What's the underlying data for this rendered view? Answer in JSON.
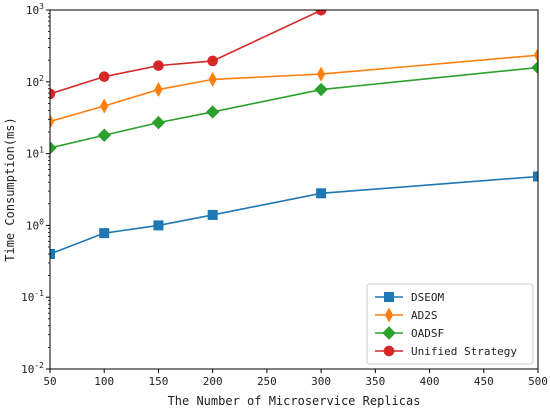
{
  "chart_data": {
    "type": "line",
    "title": "",
    "xlabel": "The Number of Microservice Replicas",
    "ylabel": "Time Consumption(ms)",
    "xlim": [
      50,
      500
    ],
    "ylim": [
      0.01,
      1000
    ],
    "yscale": "log",
    "x_ticks": [
      50,
      100,
      150,
      200,
      250,
      300,
      350,
      400,
      450,
      500
    ],
    "x_tick_labels": [
      "50",
      "100",
      "150",
      "200",
      "250",
      "300",
      "350",
      "400",
      "450",
      "500"
    ],
    "y_ticks": [
      0.01,
      0.1,
      1,
      10,
      100,
      1000
    ],
    "y_tick_labels": [
      {
        "base": "10",
        "exp": "-2"
      },
      {
        "base": "10",
        "exp": "-1"
      },
      {
        "base": "10",
        "exp": "0"
      },
      {
        "base": "10",
        "exp": "1"
      },
      {
        "base": "10",
        "exp": "2"
      },
      {
        "base": "10",
        "exp": "3"
      }
    ],
    "grid": false,
    "legend_position": "lower-right",
    "series": [
      {
        "name": "DSEOM",
        "color": "#1f77b4",
        "marker": "square",
        "x": [
          50,
          100,
          150,
          200,
          300,
          500
        ],
        "y": [
          0.4,
          0.78,
          1.0,
          1.4,
          2.8,
          4.8
        ]
      },
      {
        "name": "AD2S",
        "color": "#ff7f0e",
        "marker": "thin-diamond",
        "x": [
          50,
          100,
          150,
          200,
          300,
          500
        ],
        "y": [
          28,
          46,
          78,
          108,
          128,
          235
        ]
      },
      {
        "name": "OADSF",
        "color": "#2ca02c",
        "marker": "diamond",
        "x": [
          50,
          100,
          150,
          200,
          300,
          500
        ],
        "y": [
          12,
          18,
          27,
          38,
          78,
          158
        ]
      },
      {
        "name": "Unified Strategy",
        "color": "#d62728",
        "marker": "circle",
        "x": [
          50,
          100,
          150,
          200,
          300
        ],
        "y": [
          68,
          118,
          168,
          195,
          990
        ]
      }
    ]
  }
}
